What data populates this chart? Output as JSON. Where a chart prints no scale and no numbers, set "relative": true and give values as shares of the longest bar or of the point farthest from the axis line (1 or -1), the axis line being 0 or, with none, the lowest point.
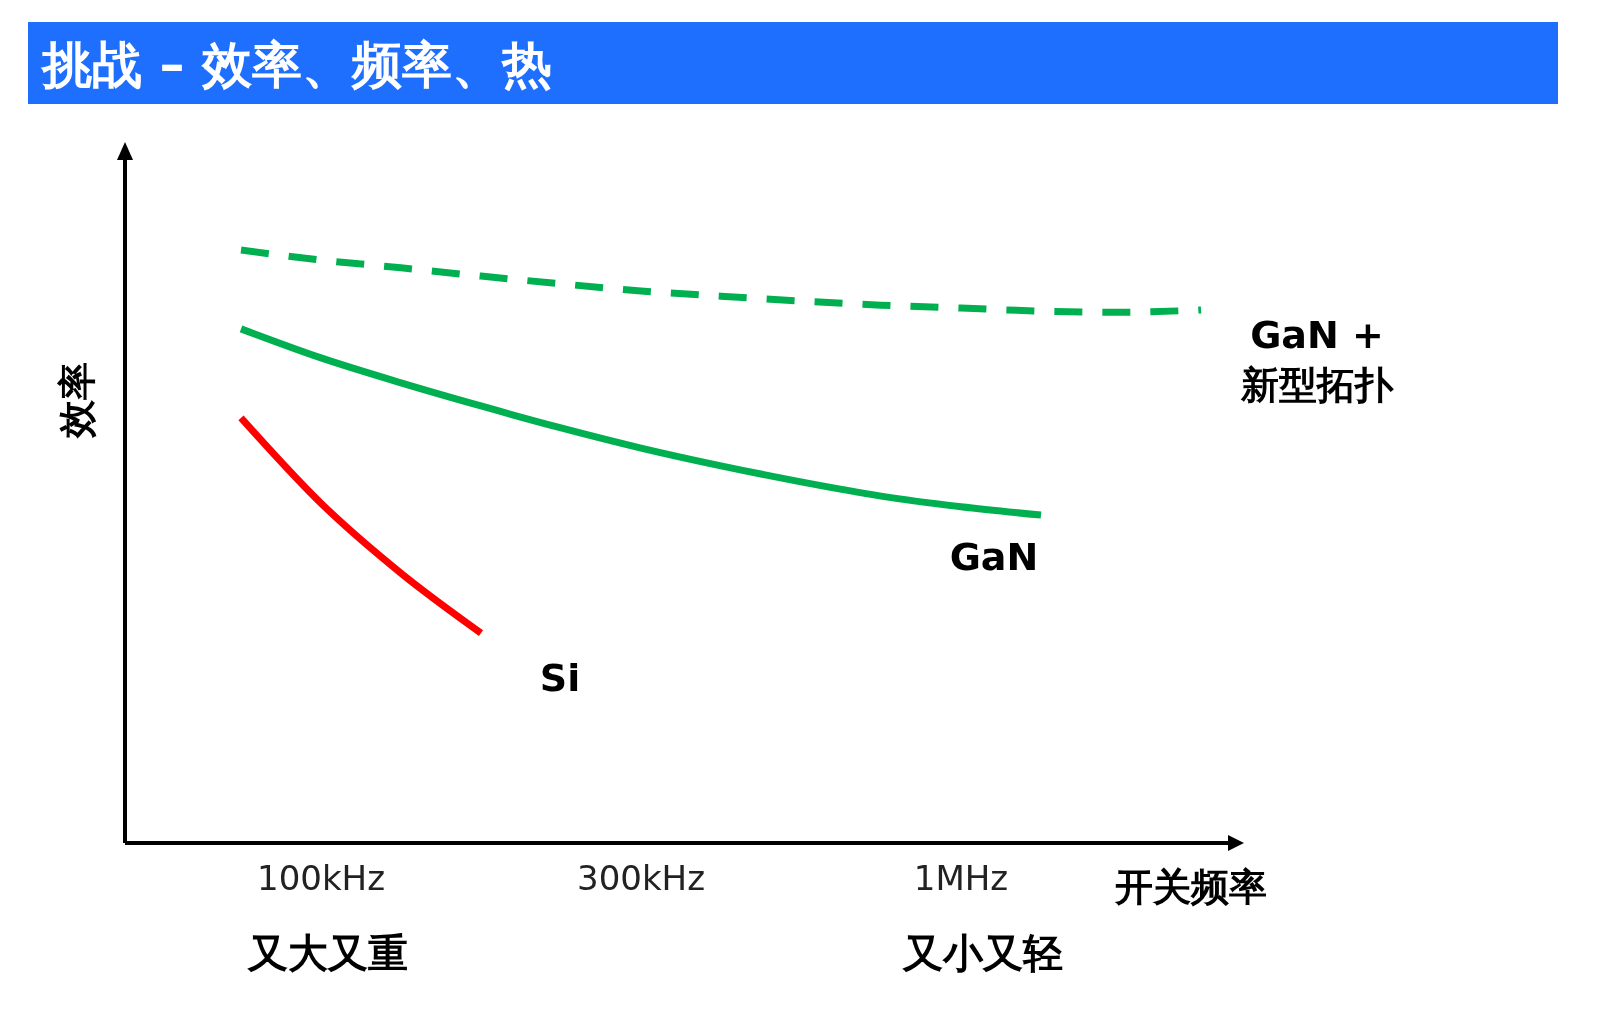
{
  "chart_data": {
    "type": "line",
    "title": "挑战 – 效率、频率、热",
    "xlabel": "开关频率",
    "ylabel": "效率",
    "relative": true,
    "categories": [
      null,
      "100kHz",
      null,
      null,
      null,
      "300kHz",
      null,
      null,
      null,
      "1MHz",
      null,
      null,
      null
    ],
    "series": [
      {
        "name": "Si",
        "color": "#ff0000",
        "line_style": "solid",
        "values": [
          0.717,
          0.573,
          0.455,
          0.354,
          null,
          null,
          null,
          null,
          null,
          null,
          null,
          null,
          null
        ]
      },
      {
        "name": "GaN",
        "color": "#00b050",
        "line_style": "solid",
        "values": [
          0.867,
          0.818,
          0.776,
          0.737,
          0.7,
          0.666,
          0.636,
          0.609,
          0.585,
          0.567,
          0.553,
          null,
          null
        ]
      },
      {
        "name": "GaN + 新型拓扑",
        "color": "#00b050",
        "line_style": "dashed",
        "values": [
          1,
          0.983,
          0.97,
          0.956,
          0.943,
          0.931,
          0.922,
          0.914,
          0.907,
          0.902,
          0.897,
          0.895,
          0.899
        ]
      }
    ],
    "annotations": [
      "又大又重",
      "又小又轻"
    ]
  }
}
